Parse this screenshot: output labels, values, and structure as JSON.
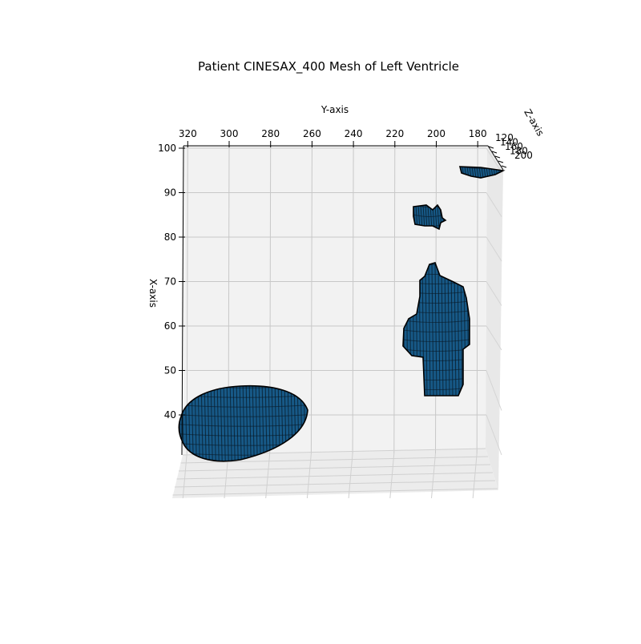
{
  "chart_data": {
    "type": "surface3d",
    "title": "Patient CINESAX_400 Mesh of Left Ventricle",
    "xlabel": "X-axis",
    "ylabel": "Y-axis",
    "zlabel": "Z-axis",
    "y_ticks": [
      320,
      300,
      280,
      260,
      240,
      220,
      200,
      180
    ],
    "x_ticks": [
      100,
      90,
      80,
      70,
      60,
      50,
      40
    ],
    "z_ticks": [
      120,
      140,
      160,
      180,
      200
    ],
    "x_range": [
      30,
      100
    ],
    "y_range": [
      170,
      325
    ],
    "z_range": [
      110,
      205
    ],
    "grid": true,
    "mesh_color": "#1f77b4",
    "edge_color": "#000000",
    "pane_color": "#f2f2f2",
    "components": [
      {
        "name": "blob-large",
        "y_center": 286,
        "x_center": 38,
        "y_extent": [
          262,
          318
        ],
        "x_extent": [
          31,
          44
        ]
      },
      {
        "name": "column",
        "y_center": 198,
        "x_center": 62,
        "y_extent": [
          183,
          214
        ],
        "x_extent": [
          45,
          74
        ]
      },
      {
        "name": "small-piece",
        "y_center": 204,
        "x_center": 88,
        "y_extent": [
          196,
          212
        ],
        "x_extent": [
          86,
          90
        ]
      },
      {
        "name": "top-sliver",
        "y_center": 176,
        "x_center": 97,
        "y_extent": [
          169,
          188
        ],
        "x_extent": [
          96,
          98
        ]
      }
    ]
  }
}
